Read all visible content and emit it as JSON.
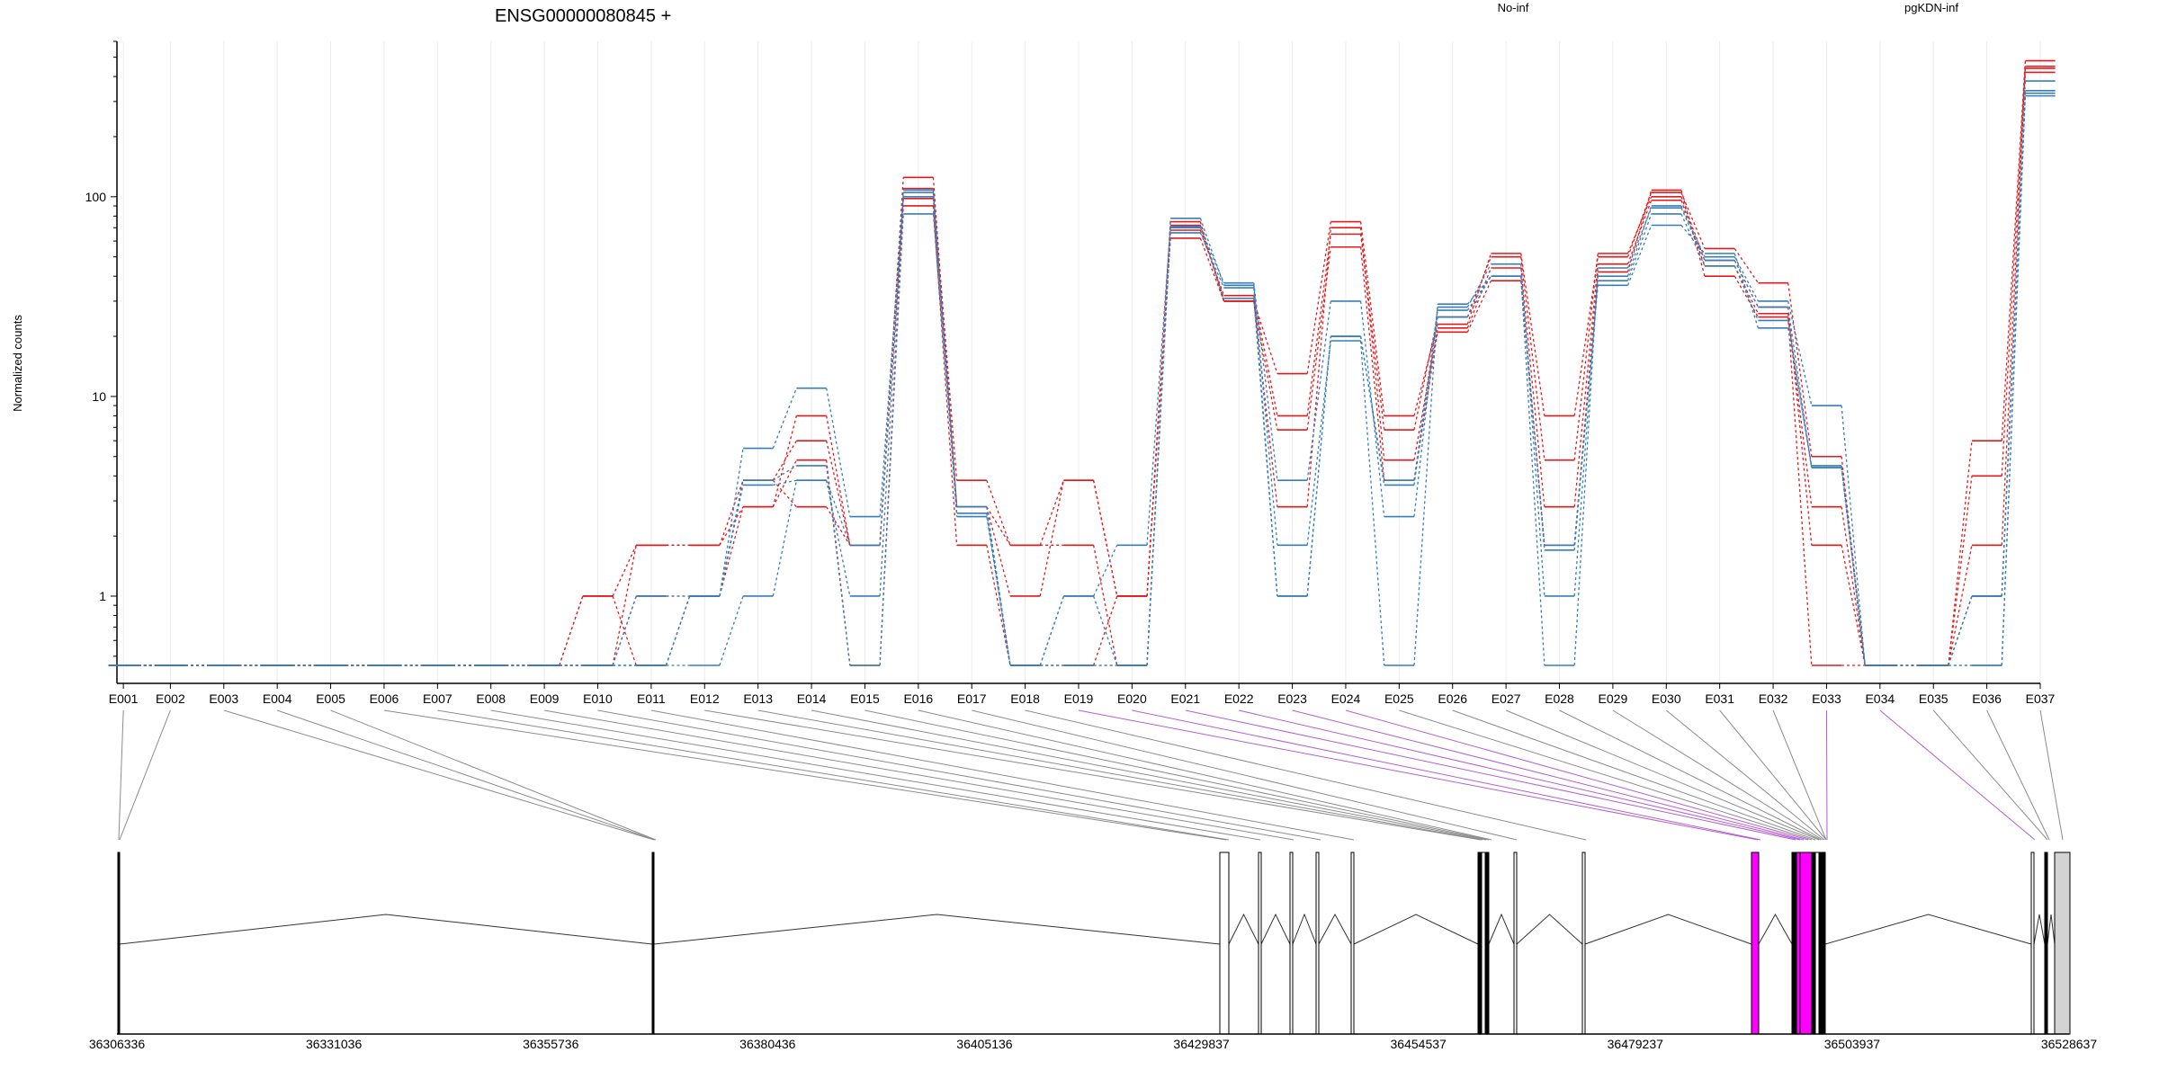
{
  "chart_data": {
    "type": "line",
    "title": "ENSG00000080845 +",
    "ylabel": "Normalized counts",
    "xlabel": "",
    "yscale": "log",
    "ylim": [
      0.45,
      600
    ],
    "grid": "vertical",
    "legend_position": "top",
    "y_ticks": [
      {
        "value": 1,
        "label": "1"
      },
      {
        "value": 10,
        "label": "10"
      },
      {
        "value": 100,
        "label": "100"
      }
    ],
    "categories": [
      "E001",
      "E002",
      "E003",
      "E004",
      "E005",
      "E006",
      "E007",
      "E008",
      "E009",
      "E010",
      "E011",
      "E012",
      "E013",
      "E014",
      "E015",
      "E016",
      "E017",
      "E018",
      "E019",
      "E020",
      "E021",
      "E022",
      "E023",
      "E024",
      "E025",
      "E026",
      "E027",
      "E028",
      "E029",
      "E030",
      "E031",
      "E032",
      "E033",
      "E034",
      "E035",
      "E036",
      "E037"
    ],
    "groups": [
      {
        "name": "No-inf",
        "color": "#e31a1c"
      },
      {
        "name": "pgKDN-inf",
        "color": "#377eb8"
      }
    ],
    "series": [
      {
        "group": "No-inf",
        "values": [
          0.45,
          0.45,
          0.45,
          0.45,
          0.45,
          0.45,
          0.45,
          0.45,
          0.45,
          1,
          1.8,
          1.8,
          2.8,
          8,
          1.8,
          125,
          2.8,
          1,
          3.8,
          1,
          62,
          30,
          13,
          75,
          8,
          23,
          52,
          8,
          50,
          105,
          55,
          37,
          5,
          0.45,
          0.45,
          6,
          480
        ]
      },
      {
        "group": "No-inf",
        "values": [
          0.45,
          0.45,
          0.45,
          0.45,
          0.45,
          0.45,
          0.45,
          0.45,
          0.45,
          1,
          0.45,
          1,
          3.8,
          6,
          1.8,
          110,
          3.8,
          1.8,
          3.8,
          1,
          68,
          32,
          8,
          65,
          6.8,
          25,
          50,
          4.8,
          52,
          100,
          48,
          28,
          1.8,
          0.45,
          0.45,
          4,
          450
        ]
      },
      {
        "group": "No-inf",
        "values": [
          0.45,
          0.45,
          0.45,
          0.45,
          0.45,
          0.45,
          0.45,
          0.45,
          0.45,
          0.45,
          1,
          1,
          2.8,
          4.8,
          0.45,
          98,
          2.8,
          1.8,
          1.8,
          0.45,
          72,
          30,
          2.8,
          70,
          4.8,
          22,
          44,
          2.8,
          46,
          96,
          45,
          26,
          2.8,
          0.45,
          0.45,
          1.8,
          440
        ]
      },
      {
        "group": "No-inf",
        "values": [
          0.45,
          0.45,
          0.45,
          0.45,
          0.45,
          0.45,
          0.45,
          0.45,
          0.45,
          0.45,
          1.8,
          1.8,
          3.8,
          2.8,
          1.8,
          90,
          1.8,
          0.45,
          0.45,
          1,
          75,
          30,
          6.8,
          56,
          3.8,
          21,
          38,
          1.8,
          42,
          108,
          40,
          25,
          0.45,
          0.45,
          0.45,
          1,
          420
        ]
      },
      {
        "group": "pgKDN-inf",
        "values": [
          0.45,
          0.45,
          0.45,
          0.45,
          0.45,
          0.45,
          0.45,
          0.45,
          0.45,
          0.45,
          0.45,
          1,
          5.5,
          11,
          2.5,
          100,
          2.8,
          0.45,
          1,
          1.8,
          70,
          37,
          3.8,
          30,
          2.5,
          28,
          46,
          1,
          40,
          90,
          50,
          30,
          9,
          0.45,
          0.45,
          1,
          380
        ]
      },
      {
        "group": "pgKDN-inf",
        "values": [
          0.45,
          0.45,
          0.45,
          0.45,
          0.45,
          0.45,
          0.45,
          0.45,
          0.45,
          0.45,
          1,
          1,
          3.8,
          4.5,
          0.45,
          82,
          2.6,
          0.45,
          0.45,
          0.45,
          66,
          35,
          1,
          20,
          3.6,
          25,
          40,
          1.8,
          36,
          72,
          52,
          22,
          4.5,
          0.45,
          0.45,
          0.45,
          340
        ]
      },
      {
        "group": "pgKDN-inf",
        "values": [
          0.45,
          0.45,
          0.45,
          0.45,
          0.45,
          0.45,
          0.45,
          0.45,
          0.45,
          0.45,
          0.45,
          0.45,
          1,
          3.8,
          1,
          105,
          2.5,
          0.45,
          0.45,
          0.45,
          78,
          36,
          1.8,
          19,
          0.45,
          29,
          40,
          1.7,
          38,
          82,
          45,
          24,
          4.4,
          0.45,
          0.45,
          0.45,
          320
        ]
      },
      {
        "group": "pgKDN-inf",
        "values": [
          0.45,
          0.45,
          0.45,
          0.45,
          0.45,
          0.45,
          0.45,
          0.45,
          0.45,
          0.45,
          0.45,
          1,
          3.6,
          3.8,
          1.8,
          108,
          2.8,
          0.45,
          1,
          0.45,
          71,
          31,
          1,
          20,
          3.8,
          27,
          40,
          0.45,
          44,
          88,
          48,
          28,
          4.4,
          0.45,
          0.45,
          1,
          330
        ]
      }
    ],
    "exon_mapping": [
      {
        "exon": "E001",
        "gx": 132,
        "highlight": false
      },
      {
        "exon": "E002",
        "gx": 133,
        "highlight": false
      },
      {
        "exon": "E003",
        "gx": 727,
        "highlight": false
      },
      {
        "exon": "E004",
        "gx": 728,
        "highlight": false
      },
      {
        "exon": "E005",
        "gx": 729,
        "highlight": false
      },
      {
        "exon": "E006",
        "gx": 1363,
        "highlight": false
      },
      {
        "exon": "E007",
        "gx": 1366,
        "highlight": false
      },
      {
        "exon": "E008",
        "gx": 1401,
        "highlight": false
      },
      {
        "exon": "E009",
        "gx": 1438,
        "highlight": false
      },
      {
        "exon": "E010",
        "gx": 1468,
        "highlight": false
      },
      {
        "exon": "E011",
        "gx": 1505,
        "highlight": false
      },
      {
        "exon": "E012",
        "gx": 1646,
        "highlight": false
      },
      {
        "exon": "E013",
        "gx": 1648,
        "highlight": false
      },
      {
        "exon": "E014",
        "gx": 1652,
        "highlight": false
      },
      {
        "exon": "E015",
        "gx": 1655,
        "highlight": false
      },
      {
        "exon": "E016",
        "gx": 1658,
        "highlight": false
      },
      {
        "exon": "E017",
        "gx": 1686,
        "highlight": false
      },
      {
        "exon": "E018",
        "gx": 1763,
        "highlight": false
      },
      {
        "exon": "E019",
        "gx": 1954,
        "highlight": true
      },
      {
        "exon": "E020",
        "gx": 1957,
        "highlight": true
      },
      {
        "exon": "E021",
        "gx": 1996,
        "highlight": true
      },
      {
        "exon": "E022",
        "gx": 2001,
        "highlight": true
      },
      {
        "exon": "E023",
        "gx": 2005,
        "highlight": true
      },
      {
        "exon": "E024",
        "gx": 2010,
        "highlight": true
      },
      {
        "exon": "E025",
        "gx": 2014,
        "highlight": false
      },
      {
        "exon": "E026",
        "gx": 2018,
        "highlight": false
      },
      {
        "exon": "E027",
        "gx": 2022,
        "highlight": false
      },
      {
        "exon": "E028",
        "gx": 2024,
        "highlight": false
      },
      {
        "exon": "E029",
        "gx": 2026,
        "highlight": false
      },
      {
        "exon": "E030",
        "gx": 2028,
        "highlight": false
      },
      {
        "exon": "E031",
        "gx": 2030,
        "highlight": false
      },
      {
        "exon": "E032",
        "gx": 2030,
        "highlight": false
      },
      {
        "exon": "E033",
        "gx": 2031,
        "highlight": true
      },
      {
        "exon": "E034",
        "gx": 2262,
        "highlight": true
      },
      {
        "exon": "E035",
        "gx": 2276,
        "highlight": false
      },
      {
        "exon": "E036",
        "gx": 2278,
        "highlight": false
      },
      {
        "exon": "E037",
        "gx": 2293,
        "highlight": false
      }
    ],
    "gene_model": {
      "coord_ticks": [
        "36306336",
        "36331036",
        "36355736",
        "36380436",
        "36405136",
        "36429837",
        "36454537",
        "36479237",
        "36503937",
        "36528637"
      ],
      "exon_blocks": [
        {
          "x1": 131,
          "x2": 133,
          "fill": "#000000",
          "tall": true
        },
        {
          "x1": 725,
          "x2": 727,
          "fill": "#000000",
          "tall": true
        },
        {
          "x1": 1356,
          "x2": 1366,
          "fill": "#ffffff",
          "tall": true
        },
        {
          "x1": 1399,
          "x2": 1402,
          "fill": "#ffffff",
          "tall": true
        },
        {
          "x1": 1434,
          "x2": 1437,
          "fill": "#ffffff",
          "tall": true
        },
        {
          "x1": 1463,
          "x2": 1466,
          "fill": "#ffffff",
          "tall": true
        },
        {
          "x1": 1502,
          "x2": 1505,
          "fill": "#ffffff",
          "tall": true
        },
        {
          "x1": 1643,
          "x2": 1646,
          "fill": "#000000",
          "tall": true
        },
        {
          "x1": 1647,
          "x2": 1651,
          "fill": "#ffffff",
          "tall": true
        },
        {
          "x1": 1651,
          "x2": 1655,
          "fill": "#000000",
          "tall": true
        },
        {
          "x1": 1683,
          "x2": 1686,
          "fill": "#ffffff",
          "tall": true
        },
        {
          "x1": 1759,
          "x2": 1762,
          "fill": "#ffffff",
          "tall": true
        },
        {
          "x1": 1947,
          "x2": 1955,
          "fill": "#ff00ff",
          "tall": true
        },
        {
          "x1": 1992,
          "x2": 1996,
          "fill": "#000000",
          "tall": true
        },
        {
          "x1": 1997,
          "x2": 2001,
          "fill": "#ff00ff",
          "tall": true
        },
        {
          "x1": 2001,
          "x2": 2014,
          "fill": "#ff00ff",
          "tall": true
        },
        {
          "x1": 2014,
          "x2": 2017,
          "fill": "#000000",
          "tall": true
        },
        {
          "x1": 2018,
          "x2": 2022,
          "fill": "#ffffff",
          "tall": true
        },
        {
          "x1": 2022,
          "x2": 2025,
          "fill": "#000000",
          "tall": true
        },
        {
          "x1": 2026,
          "x2": 2029,
          "fill": "#000000",
          "tall": true
        },
        {
          "x1": 2258,
          "x2": 2261,
          "fill": "#ffffff",
          "tall": true
        },
        {
          "x1": 2273,
          "x2": 2276,
          "fill": "#000000",
          "tall": true
        },
        {
          "x1": 2284,
          "x2": 2301,
          "fill": "#d3d3d3",
          "tall": true
        }
      ]
    }
  }
}
